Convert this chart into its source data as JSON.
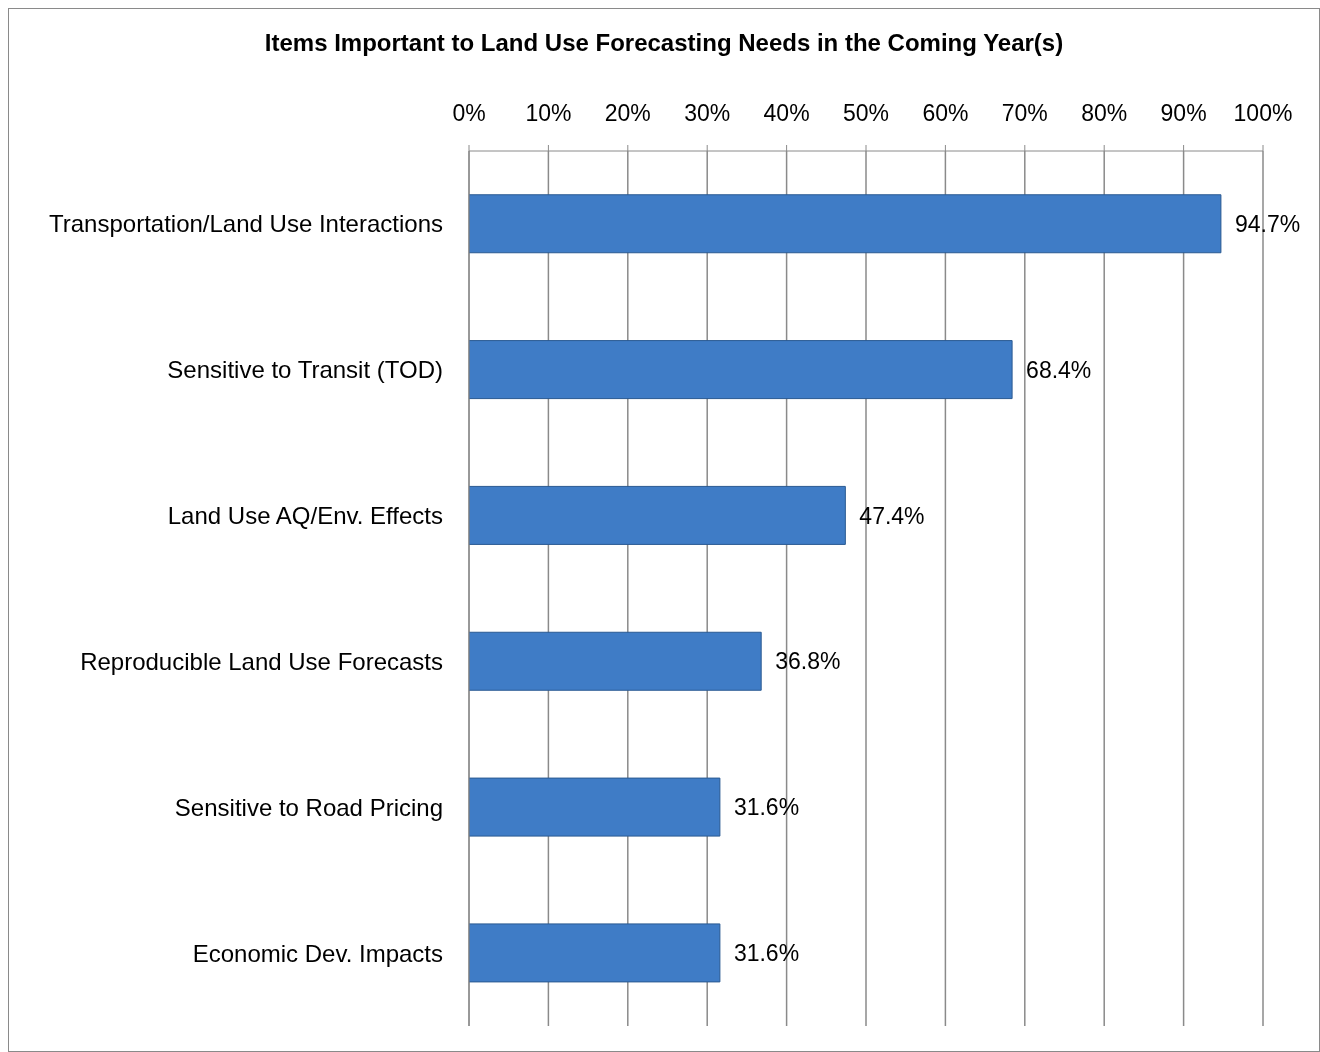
{
  "chart_data": {
    "type": "bar",
    "orientation": "horizontal",
    "title": "Items Important to Land Use Forecasting Needs in the Coming Year(s)",
    "categories": [
      "Transportation/Land Use Interactions",
      "Sensitive to Transit (TOD)",
      "Land Use AQ/Env. Effects",
      "Reproducible Land Use Forecasts",
      "Sensitive to Road Pricing",
      "Economic Dev. Impacts"
    ],
    "values": [
      94.7,
      68.4,
      47.4,
      36.8,
      31.6,
      31.6
    ],
    "color": "#3f7cc6",
    "value_labels": [
      "94.7%",
      "68.4%",
      "47.4%",
      "36.8%",
      "31.6%",
      "31.6%"
    ],
    "xlim": [
      0,
      100
    ],
    "xticks": [
      {
        "value": 0,
        "label": "0%"
      },
      {
        "value": 10,
        "label": "10%"
      },
      {
        "value": 20,
        "label": "20%"
      },
      {
        "value": 30,
        "label": "30%"
      },
      {
        "value": 40,
        "label": "40%"
      },
      {
        "value": 50,
        "label": "50%"
      },
      {
        "value": 60,
        "label": "60%"
      },
      {
        "value": 70,
        "label": "70%"
      },
      {
        "value": 80,
        "label": "80%"
      },
      {
        "value": 90,
        "label": "90%"
      },
      {
        "value": 100,
        "label": "100%"
      }
    ],
    "grid": "x"
  }
}
